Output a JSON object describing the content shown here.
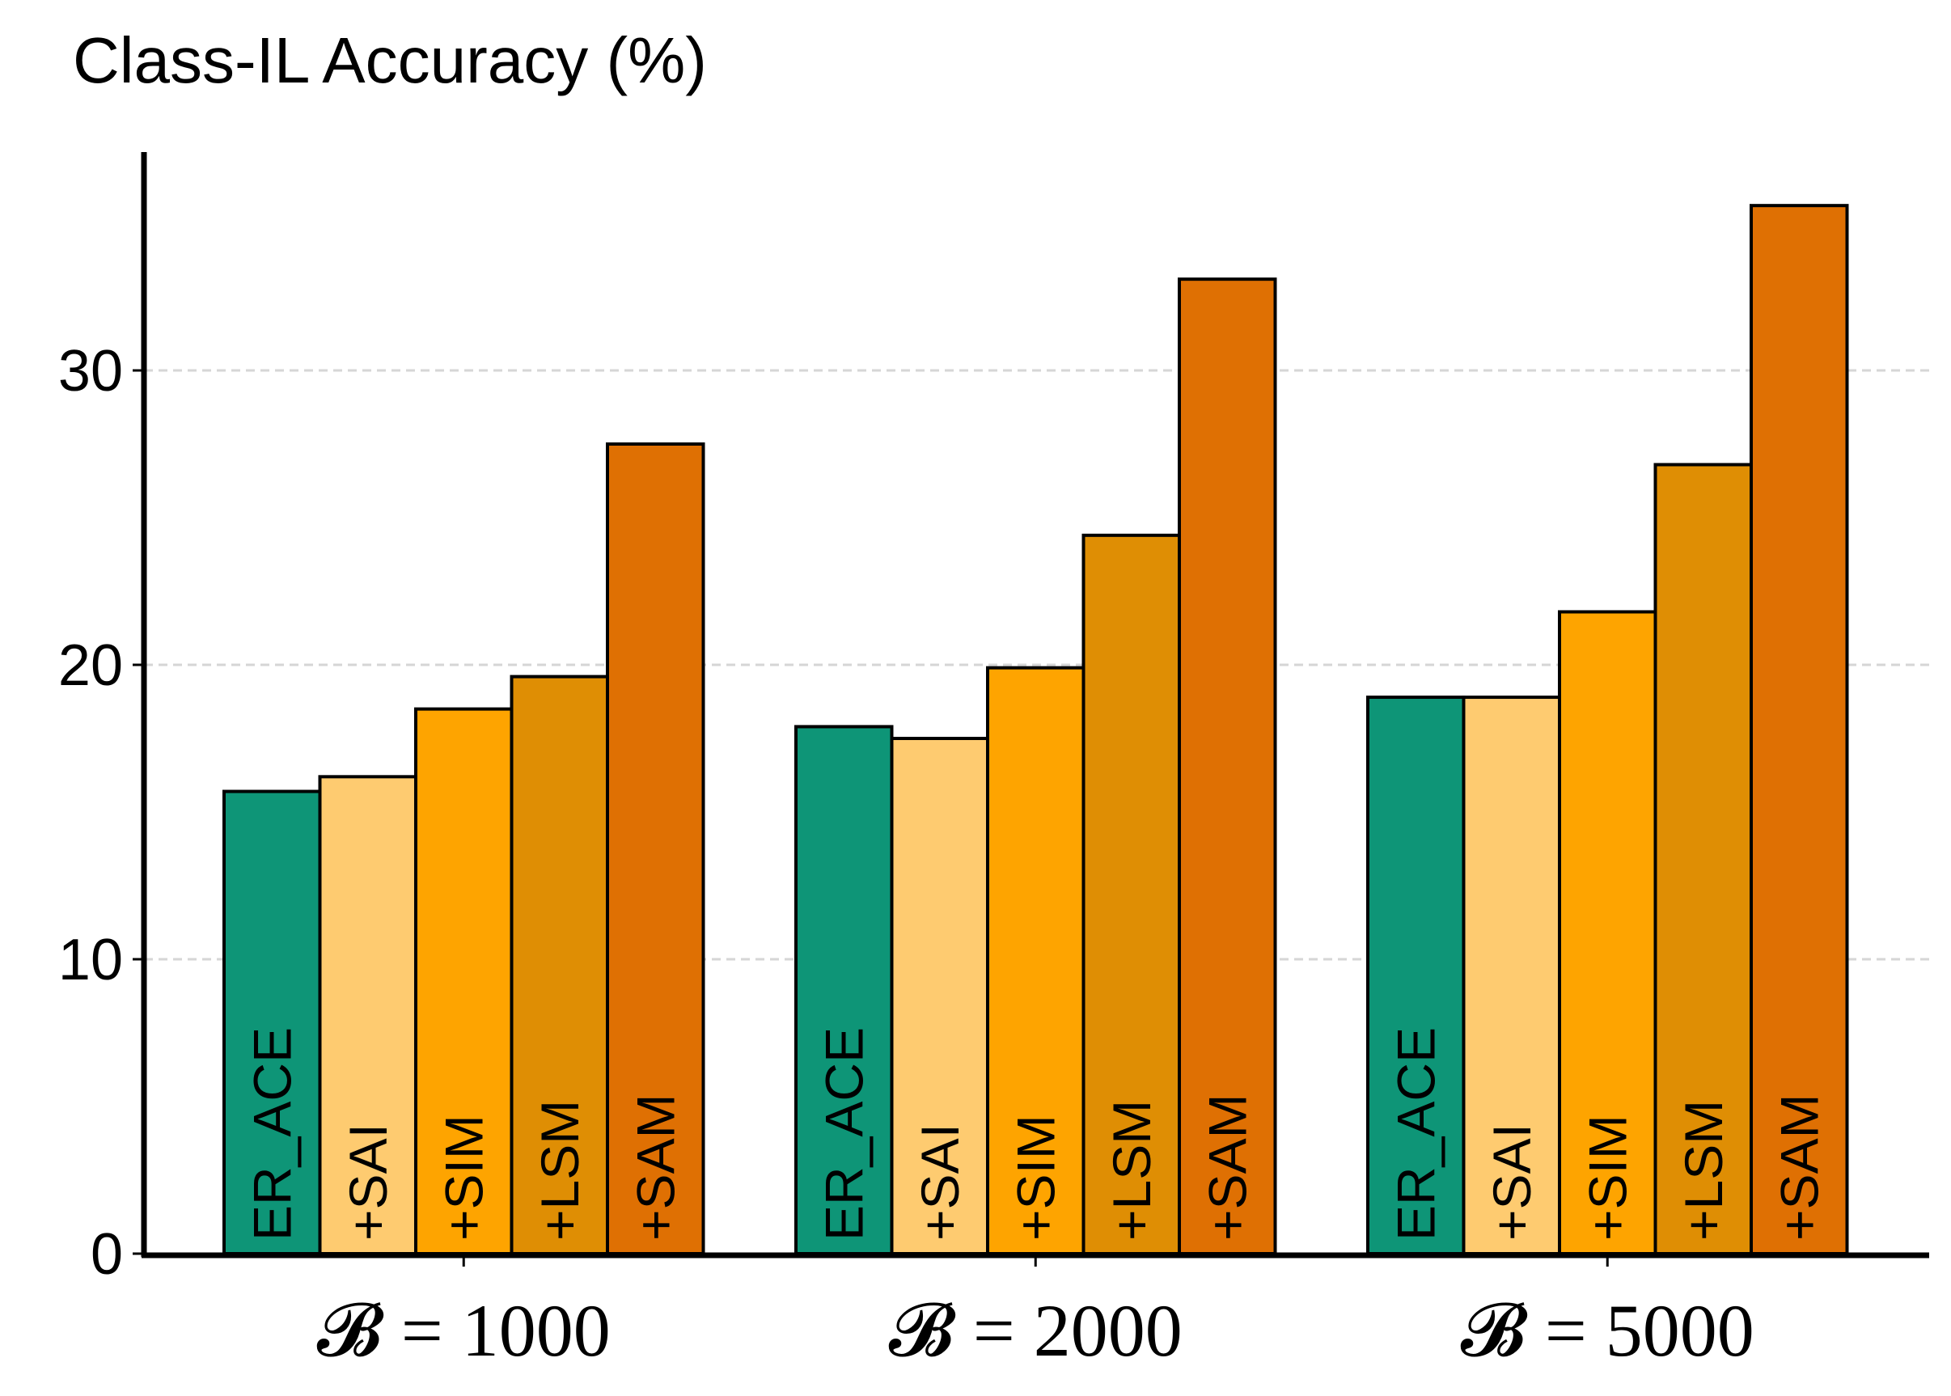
{
  "chart_data": {
    "type": "bar",
    "title": "Class-IL Accuracy (%)",
    "xlabel": "",
    "ylabel": "",
    "categories": [
      "𝓑 = 1000",
      "𝓑 = 2000",
      "𝓑 = 5000"
    ],
    "series": [
      {
        "name": "ER_ACE",
        "color": "#0e9577",
        "values": [
          15.7,
          17.9,
          18.9
        ]
      },
      {
        "name": "+SAI",
        "color": "#fecb70",
        "values": [
          16.2,
          17.5,
          18.9
        ]
      },
      {
        "name": "+SIM",
        "color": "#fea400",
        "values": [
          18.5,
          19.9,
          21.8
        ]
      },
      {
        "name": "+LSM",
        "color": "#df8e04",
        "values": [
          19.6,
          24.4,
          26.8
        ]
      },
      {
        "name": "+SAM",
        "color": "#df7003",
        "values": [
          27.5,
          33.1,
          35.6
        ]
      }
    ],
    "ylim": [
      0,
      37.5
    ],
    "yticks": [
      0,
      10,
      20,
      30
    ],
    "grid": "horizontal dashed",
    "legend": "none (series names written inside bars)"
  }
}
